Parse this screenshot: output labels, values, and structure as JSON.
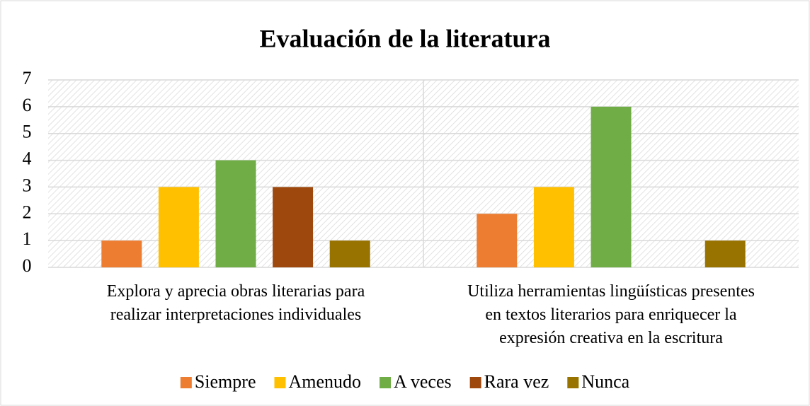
{
  "chart_data": {
    "type": "bar",
    "title": "Evaluación de la literatura",
    "categories": [
      "Explora y aprecia obras literarias para realizar interpretaciones individuales",
      "Utiliza herramientas lingüísticas presentes en textos literarios para enriquecer la expresión creativa en la escritura"
    ],
    "series": [
      {
        "name": "Siempre",
        "color": "#ED7D31",
        "values": [
          1,
          2
        ]
      },
      {
        "name": "Amenudo",
        "color": "#FFC000",
        "values": [
          3,
          3
        ]
      },
      {
        "name": "A veces",
        "color": "#70AD47",
        "values": [
          4,
          6
        ]
      },
      {
        "name": "Rara vez",
        "color": "#9E480E",
        "values": [
          3,
          0
        ]
      },
      {
        "name": "Nunca",
        "color": "#997300",
        "values": [
          1,
          1
        ]
      }
    ],
    "ylim": [
      0,
      7
    ],
    "yticks": [
      0,
      1,
      2,
      3,
      4,
      5,
      6,
      7
    ],
    "grid": true,
    "legend": "bottom"
  }
}
